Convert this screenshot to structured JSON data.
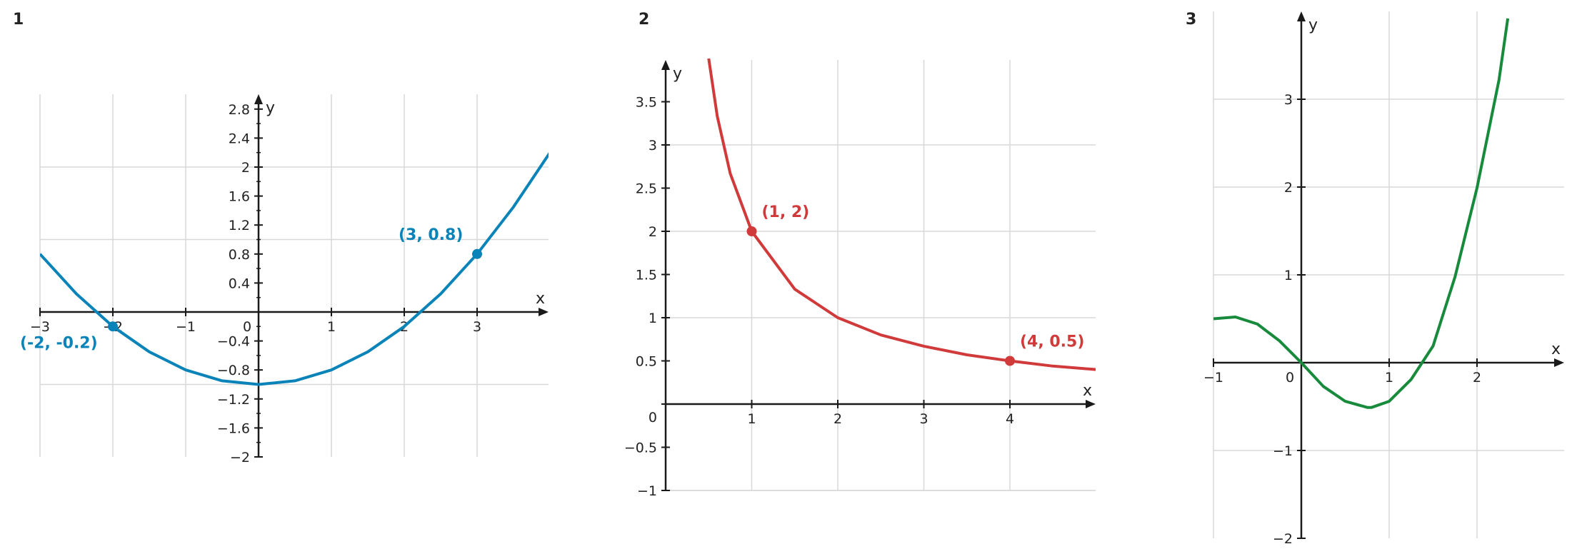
{
  "chart_data": [
    {
      "type": "line",
      "panel_label": "1",
      "xlabel": "x",
      "ylabel": "y",
      "xlim": [
        -3,
        4
      ],
      "ylim": [
        -2,
        3
      ],
      "x_ticks": [
        -3,
        -2,
        -1,
        0,
        1,
        2,
        3
      ],
      "x_tick_labels": [
        "−3",
        "−2",
        "−1",
        "0",
        "1",
        "2",
        "3"
      ],
      "y_ticks": [
        -2,
        -1.6,
        -1.2,
        -0.8,
        -0.4,
        0.4,
        0.8,
        1.2,
        1.6,
        2,
        2.4,
        2.8
      ],
      "y_tick_labels": [
        "−2",
        "−1.6",
        "−1.2",
        "−0.8",
        "−0.4",
        "0.4",
        "0.8",
        "1.2",
        "1.6",
        "2",
        "2.4",
        "2.8"
      ],
      "x_grid": [
        -2,
        -1,
        0,
        1,
        2,
        3
      ],
      "y_grid": [
        -1,
        1,
        2
      ],
      "color": "#0a84b8",
      "series": [
        {
          "x": [
            -3,
            -2.5,
            -2,
            -1.5,
            -1,
            -0.5,
            0,
            0.5,
            1,
            1.5,
            2,
            2.5,
            3,
            3.5,
            4
          ],
          "y": [
            0.8,
            0.25,
            -0.2,
            -0.55,
            -0.8,
            -0.95,
            -1.0,
            -0.95,
            -0.8,
            -0.55,
            -0.2,
            0.25,
            0.8,
            1.45,
            2.2
          ]
        }
      ],
      "points": [
        {
          "x": -2,
          "y": -0.2,
          "label": "(-2, -0.2)"
        },
        {
          "x": 3,
          "y": 0.8,
          "label": "(3, 0.8)"
        }
      ]
    },
    {
      "type": "line",
      "panel_label": "2",
      "xlabel": "x",
      "ylabel": "y",
      "xlim": [
        -0.1,
        5
      ],
      "ylim": [
        -1,
        4
      ],
      "x_ticks": [
        1,
        2,
        3,
        4
      ],
      "x_tick_labels": [
        "1",
        "2",
        "3",
        "4"
      ],
      "y_ticks": [
        -1,
        -0.5,
        0,
        0.5,
        1,
        1.5,
        2,
        2.5,
        3,
        3.5
      ],
      "y_tick_labels": [
        "−1",
        "−0.5",
        "0",
        "0.5",
        "1",
        "1.5",
        "2",
        "2.5",
        "3",
        "3.5"
      ],
      "x_grid": [
        1,
        2,
        3,
        4
      ],
      "y_grid": [
        -1,
        1,
        2,
        3
      ],
      "color": "#d03a3a",
      "series": [
        {
          "x": [
            0.5,
            0.6,
            0.75,
            1,
            1.5,
            2,
            2.5,
            3,
            3.5,
            4,
            4.5,
            5
          ],
          "y": [
            4,
            3.33,
            2.67,
            2,
            1.33,
            1,
            0.8,
            0.67,
            0.57,
            0.5,
            0.44,
            0.4
          ]
        }
      ],
      "points": [
        {
          "x": 1,
          "y": 2,
          "label": "(1, 2)"
        },
        {
          "x": 4,
          "y": 0.5,
          "label": "(4, 0.5)"
        }
      ]
    },
    {
      "type": "line",
      "panel_label": "3",
      "xlabel": "x",
      "ylabel": "y",
      "xlim": [
        -1,
        3
      ],
      "ylim": [
        -2,
        4
      ],
      "x_ticks": [
        -1,
        0,
        1,
        2
      ],
      "x_tick_labels": [
        "−1",
        "0",
        "1",
        "2"
      ],
      "y_ticks": [
        -2,
        -1,
        1,
        2,
        3
      ],
      "y_tick_labels": [
        "−2",
        "−1",
        "1",
        "2",
        "3"
      ],
      "x_grid": [
        1,
        2
      ],
      "y_grid": [
        -1,
        1,
        2,
        3
      ],
      "color": "#178a3c",
      "series": [
        {
          "x": [
            -1,
            -0.75,
            -0.5,
            -0.25,
            0,
            0.25,
            0.5,
            0.75,
            0.8,
            1,
            1.25,
            1.5,
            1.75,
            2,
            2.25,
            2.35
          ],
          "y": [
            0.5,
            0.52,
            0.44,
            0.25,
            0,
            -0.27,
            -0.44,
            -0.51,
            -0.51,
            -0.44,
            -0.19,
            0.19,
            0.98,
            1.99,
            3.22,
            3.92
          ]
        }
      ],
      "points": []
    }
  ]
}
